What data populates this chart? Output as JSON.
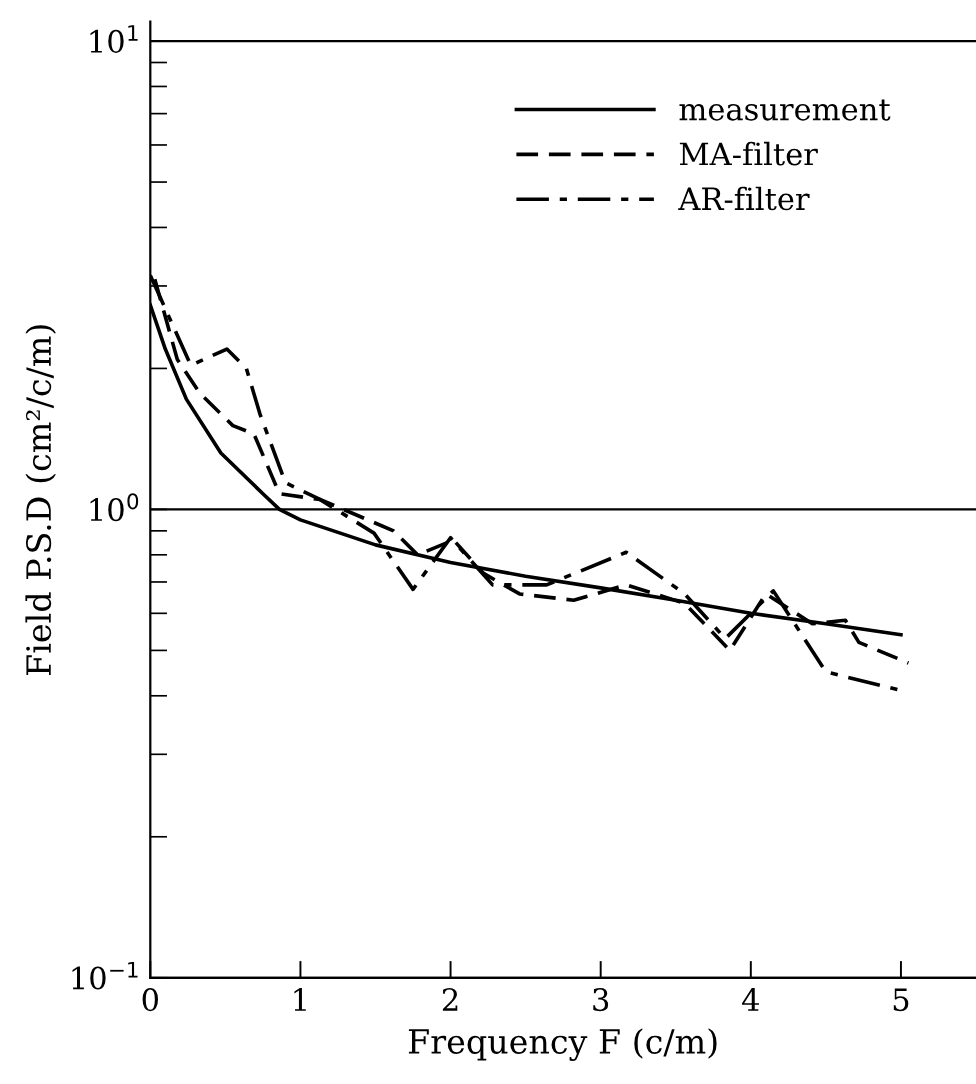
{
  "chart_data": {
    "type": "line",
    "xlabel": "Frequency F (c/m)",
    "ylabel": "Field P.S.D (cm²/c/m)",
    "xlim": [
      0,
      5.5
    ],
    "xticks": [
      0,
      1,
      2,
      3,
      4,
      5
    ],
    "ylim": [
      0.1,
      11
    ],
    "yticks": [
      {
        "value": 0.1,
        "label": "10$^{−1}$"
      },
      {
        "value": 1,
        "label": "10$^{0}$"
      },
      {
        "value": 10,
        "label": "10$^{1}$"
      }
    ],
    "log": "y",
    "grid": "y",
    "legend": "top right",
    "marker": "none",
    "series": [
      {
        "name": "measurement",
        "color": "#000000",
        "line_style": "solid",
        "x": [
          0,
          0.1,
          0.24,
          0.47,
          0.75,
          0.86,
          1.0,
          1.5,
          2.0,
          2.5,
          3.0,
          3.5,
          4.0,
          4.5,
          5.0
        ],
        "values": [
          2.73,
          2.2,
          1.72,
          1.32,
          1.08,
          1.0,
          0.95,
          0.84,
          0.77,
          0.72,
          0.68,
          0.64,
          0.6,
          0.57,
          0.54
        ]
      },
      {
        "name": "MA-filter",
        "color": "#000000",
        "line_style": "dashed",
        "x": [
          0.03,
          0.18,
          0.33,
          0.55,
          0.69,
          0.86,
          1.13,
          1.35,
          1.62,
          1.78,
          2.02,
          2.22,
          2.46,
          2.82,
          3.17,
          3.56,
          3.86,
          4.1,
          4.41,
          4.63,
          4.72,
          5.05
        ],
        "values": [
          3.1,
          2.09,
          1.77,
          1.51,
          1.45,
          1.08,
          1.05,
          0.98,
          0.9,
          0.8,
          0.86,
          0.73,
          0.66,
          0.64,
          0.69,
          0.63,
          0.5,
          0.66,
          0.57,
          0.58,
          0.52,
          0.47
        ]
      },
      {
        "name": "AR-filter",
        "color": "#000000",
        "line_style": "dashdot",
        "x": [
          0,
          0.27,
          0.51,
          0.64,
          0.73,
          0.9,
          1.13,
          1.49,
          1.75,
          2.0,
          2.28,
          2.64,
          3.17,
          3.56,
          3.83,
          4.15,
          4.5,
          5.01
        ],
        "values": [
          3.16,
          2.03,
          2.2,
          2.0,
          1.6,
          1.14,
          1.05,
          0.89,
          0.675,
          0.87,
          0.69,
          0.69,
          0.81,
          0.66,
          0.53,
          0.67,
          0.45,
          0.41
        ]
      }
    ]
  }
}
